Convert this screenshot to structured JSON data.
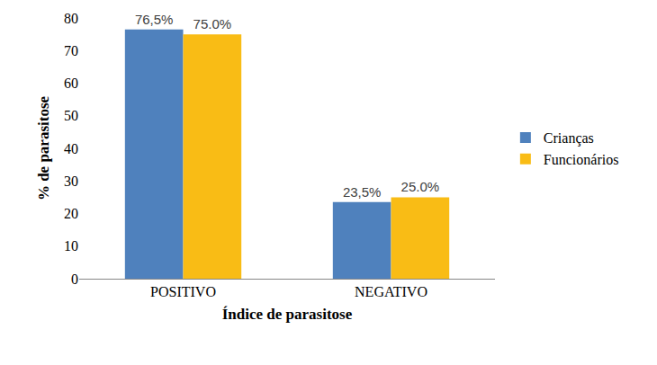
{
  "chart_data": {
    "type": "bar",
    "xlabel": "Índice de parasitose",
    "ylabel": "% de parasitose",
    "categories": [
      "POSITIVO",
      "NEGATIVO"
    ],
    "series": [
      {
        "name": "Crianças",
        "color": "#4f81bd",
        "values": [
          76.5,
          23.5
        ],
        "value_labels": [
          "76,5%",
          "23,5%"
        ]
      },
      {
        "name": "Funcionários",
        "color": "#f9bc15",
        "values": [
          75.0,
          25.0
        ],
        "value_labels": [
          "75.0%",
          "25.0%"
        ]
      }
    ],
    "ylim": [
      0,
      80
    ],
    "yticks": [
      0,
      10,
      20,
      30,
      40,
      50,
      60,
      70,
      80
    ],
    "grid": false,
    "legend": "right",
    "data_labels": true
  }
}
